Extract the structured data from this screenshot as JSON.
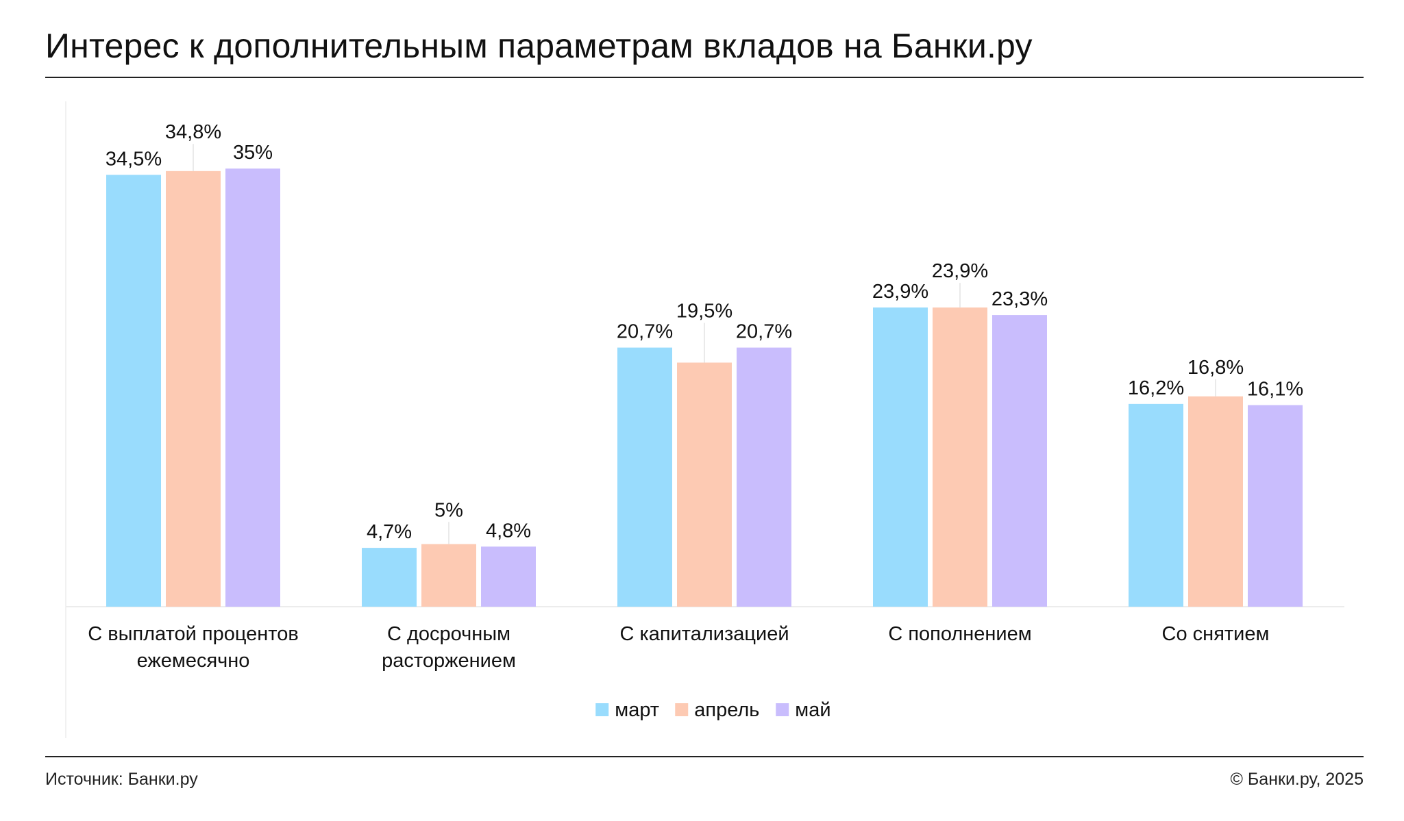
{
  "title": "Интерес к дополнительным параметрам вкладов на Банки.ру",
  "footer": {
    "source": "Источник: Банки.ру",
    "copyright": "© Банки.ру, 2025"
  },
  "chart_data": {
    "type": "bar",
    "categories": [
      [
        "С выплатой процентов",
        "ежемесячно"
      ],
      [
        "С досрочным",
        "расторжением"
      ],
      [
        "С капитализацией"
      ],
      [
        "С пополнением"
      ],
      [
        "Со снятием"
      ]
    ],
    "series": [
      {
        "name": "март",
        "color": "#99dcfd",
        "values": [
          34.5,
          4.7,
          20.7,
          23.9,
          16.2
        ],
        "labels": [
          "34,5%",
          "4,7%",
          "20,7%",
          "23,9%",
          "16,2%"
        ]
      },
      {
        "name": "апрель",
        "color": "#fdcab3",
        "values": [
          34.8,
          5.0,
          19.5,
          23.9,
          16.8
        ],
        "labels": [
          "34,8%",
          "5%",
          "19,5%",
          "23,9%",
          "16,8%"
        ]
      },
      {
        "name": "май",
        "color": "#c9bdfd",
        "values": [
          35.0,
          4.8,
          20.7,
          23.3,
          16.1
        ],
        "labels": [
          "35%",
          "4,8%",
          "20,7%",
          "23,3%",
          "16,1%"
        ]
      }
    ],
    "ylim": [
      0,
      35
    ],
    "legend": "bottom-center",
    "grid": false
  }
}
